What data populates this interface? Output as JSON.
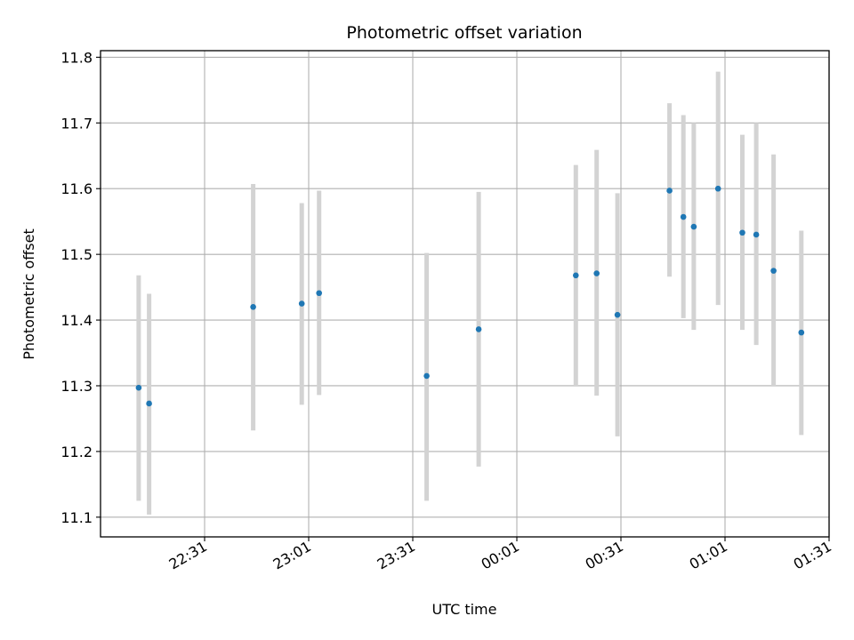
{
  "chart_data": {
    "type": "scatter",
    "title": "Photometric offset variation",
    "xlabel": "UTC time",
    "ylabel": "Photometric offset",
    "x_axis": "time",
    "xlim": [
      "22:01",
      "01:31"
    ],
    "ylim": [
      11.07,
      11.81
    ],
    "grid": true,
    "y_ticks": [
      "11.1",
      "11.2",
      "11.3",
      "11.4",
      "11.5",
      "11.6",
      "11.7",
      "11.8"
    ],
    "x_ticks": [
      "22:31",
      "23:01",
      "23:31",
      "00:01",
      "00:31",
      "01:01",
      "01:31"
    ],
    "point_color": "#1f77b4",
    "errorbar_color": "#d3d3d3",
    "points": [
      {
        "x": "22:12",
        "y": 11.297,
        "low": 11.125,
        "high": 11.468
      },
      {
        "x": "22:15",
        "y": 11.273,
        "low": 11.104,
        "high": 11.44
      },
      {
        "x": "22:45",
        "y": 11.42,
        "low": 11.232,
        "high": 11.607
      },
      {
        "x": "22:59",
        "y": 11.425,
        "low": 11.271,
        "high": 11.578
      },
      {
        "x": "23:04",
        "y": 11.441,
        "low": 11.286,
        "high": 11.597
      },
      {
        "x": "23:35",
        "y": 11.315,
        "low": 11.125,
        "high": 11.502
      },
      {
        "x": "23:50",
        "y": 11.386,
        "low": 11.177,
        "high": 11.595
      },
      {
        "x": "00:18",
        "y": 11.468,
        "low": 11.3,
        "high": 11.636
      },
      {
        "x": "00:24",
        "y": 11.471,
        "low": 11.285,
        "high": 11.659
      },
      {
        "x": "00:30",
        "y": 11.408,
        "low": 11.223,
        "high": 11.593
      },
      {
        "x": "00:45",
        "y": 11.597,
        "low": 11.466,
        "high": 11.73
      },
      {
        "x": "00:49",
        "y": 11.557,
        "low": 11.403,
        "high": 11.712
      },
      {
        "x": "00:52",
        "y": 11.542,
        "low": 11.385,
        "high": 11.7
      },
      {
        "x": "00:59",
        "y": 11.6,
        "low": 11.423,
        "high": 11.778
      },
      {
        "x": "01:06",
        "y": 11.533,
        "low": 11.385,
        "high": 11.682
      },
      {
        "x": "01:10",
        "y": 11.53,
        "low": 11.362,
        "high": 11.7
      },
      {
        "x": "01:15",
        "y": 11.475,
        "low": 11.3,
        "high": 11.652
      },
      {
        "x": "01:23",
        "y": 11.381,
        "low": 11.225,
        "high": 11.536
      }
    ]
  }
}
